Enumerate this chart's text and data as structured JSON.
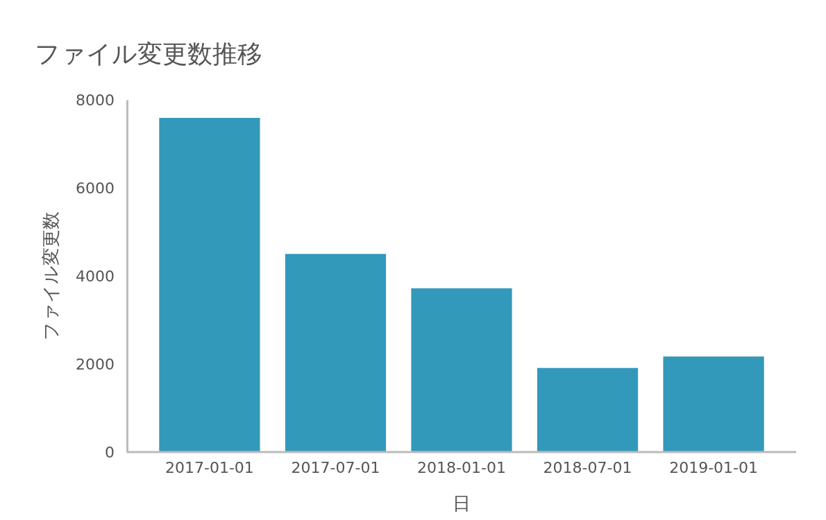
{
  "chart_data": {
    "type": "bar",
    "title": "ファイル変更数推移",
    "xlabel": "日",
    "ylabel": "ファイル変更数",
    "categories": [
      "2017-01-01",
      "2017-07-01",
      "2018-01-01",
      "2018-07-01",
      "2019-01-01"
    ],
    "values": [
      7590,
      4500,
      3720,
      1910,
      2170
    ],
    "color": "#3399bb",
    "ylim": [
      0,
      8000
    ],
    "yticks": [
      0,
      2000,
      4000,
      6000,
      8000
    ],
    "grid": false
  }
}
